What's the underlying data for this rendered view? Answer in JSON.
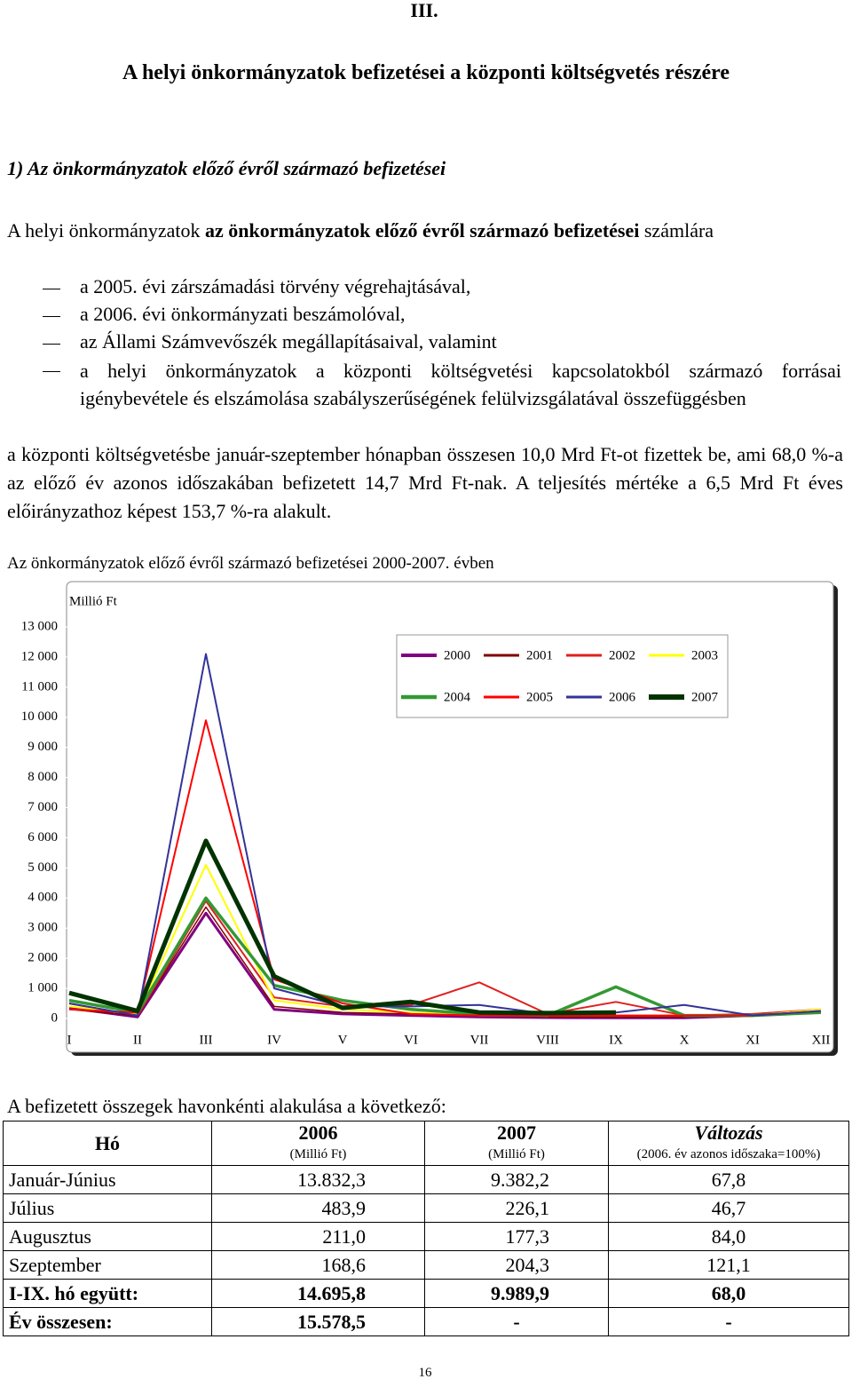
{
  "heading": {
    "number": "III.",
    "title": "A helyi önkormányzatok befizetései a központi költségvetés részére"
  },
  "section": "1) Az önkormányzatok előző évről származó befizetései",
  "intro": [
    "A helyi önkormányzatok",
    "az önkormányzatok előző évről származó befizetései",
    "számlára"
  ],
  "list": [
    "a 2005. évi zárszámadási törvény végrehajtásával,",
    "a 2006. évi önkormányzati beszámolóval,",
    "az Állami Számvevőszék megállapításaival, valamint",
    "a helyi önkormányzatok a központi költségvetési kapcsolatokból származó forrásai igénybevétele és elszámolása szabályszerűségének felülvizsgálatával összefüggésben"
  ],
  "summary": "a központi költségvetésbe január-szeptember hónapban összesen 10,0 Mrd Ft-ot fizettek be, ami 68,0 %-a az előző év azonos időszakában befizetett 14,7 Mrd Ft-nak. A teljesítés mértéke a 6,5 Mrd Ft éves előirányzathoz képest 153,7 %-ra alakult.",
  "chart_data": {
    "type": "line",
    "title": "Az önkormányzatok előző évről származó befizetései 2000-2007. évben",
    "y_label": "Millió Ft",
    "categories": [
      "I",
      "II",
      "III",
      "IV",
      "V",
      "VI",
      "VII",
      "VIII",
      "IX",
      "X",
      "XI",
      "XII"
    ],
    "series": [
      {
        "name": "2000",
        "color": "#800080",
        "values": [
          350,
          50,
          3500,
          300,
          150,
          100,
          50,
          30,
          20,
          20,
          100,
          250
        ]
      },
      {
        "name": "2001",
        "color": "#800000",
        "values": [
          300,
          100,
          3700,
          400,
          200,
          150,
          100,
          50,
          50,
          50,
          150,
          250
        ]
      },
      {
        "name": "2002",
        "color": "#e02020",
        "values": [
          500,
          100,
          3900,
          700,
          400,
          450,
          1200,
          150,
          550,
          100,
          150,
          300
        ]
      },
      {
        "name": "2003",
        "color": "#ffff00",
        "values": [
          400,
          150,
          5100,
          600,
          300,
          200,
          100,
          100,
          100,
          100,
          100,
          300
        ]
      },
      {
        "name": "2004",
        "color": "#339933",
        "values": [
          600,
          200,
          4000,
          1100,
          600,
          300,
          150,
          100,
          1050,
          100,
          100,
          200
        ]
      },
      {
        "name": "2005",
        "color": "#ff0000",
        "values": [
          300,
          200,
          9900,
          1300,
          500,
          150,
          100,
          100,
          100,
          100,
          100,
          250
        ]
      },
      {
        "name": "2006",
        "color": "#333399",
        "values": [
          500,
          100,
          12100,
          1000,
          400,
          400,
          450,
          150,
          200,
          450,
          100,
          250
        ]
      },
      {
        "name": "2007",
        "color": "#003300",
        "values": [
          850,
          250,
          5900,
          1400,
          350,
          550,
          200,
          180,
          200,
          null,
          null,
          null
        ]
      }
    ],
    "ylim": [
      0,
      13000
    ],
    "yticks": [
      0,
      {
        "value": 1000,
        "label": "1 000"
      },
      {
        "value": 2000,
        "label": "2 000"
      },
      {
        "value": 3000,
        "label": "3 000"
      },
      {
        "value": 4000,
        "label": "4 000"
      },
      {
        "value": 5000,
        "label": "5 000"
      },
      {
        "value": 6000,
        "label": "6 000"
      },
      {
        "value": 7000,
        "label": "7 000"
      },
      {
        "value": 8000,
        "label": "8 000"
      },
      {
        "value": 9000,
        "label": "9 000"
      },
      {
        "value": 10000,
        "label": "10 000"
      },
      {
        "value": 11000,
        "label": "11 000"
      },
      {
        "value": 12000,
        "label": "12 000"
      },
      {
        "value": 13000,
        "label": "13 000"
      }
    ],
    "grid": false,
    "legend": "upper right"
  },
  "table": {
    "caption": "A befizetett összegek havonkénti alakulása a következő:",
    "header": [
      {
        "text": "Hó"
      },
      {
        "text": "2006",
        "unit": "(Millió Ft)"
      },
      {
        "text": "2007",
        "unit": "(Millió Ft)"
      },
      {
        "text": "Változás",
        "unit": "(2006. év azonos időszaka=100%)"
      }
    ],
    "rows": [
      [
        "Január-Június",
        "13.832,3",
        "9.382,2",
        "67,8"
      ],
      [
        "Július",
        "483,9",
        "226,1",
        "46,7"
      ],
      [
        "Augusztus",
        "211,0",
        "177,3",
        "84,0"
      ],
      [
        "Szeptember",
        "168,6",
        "204,3",
        "121,1"
      ],
      [
        "I-IX. hó együtt:",
        "14.695,8",
        "9.989,9",
        "68,0"
      ],
      [
        "Év összesen:",
        "15.578,5",
        "-",
        "-"
      ]
    ]
  },
  "page_number": "16"
}
